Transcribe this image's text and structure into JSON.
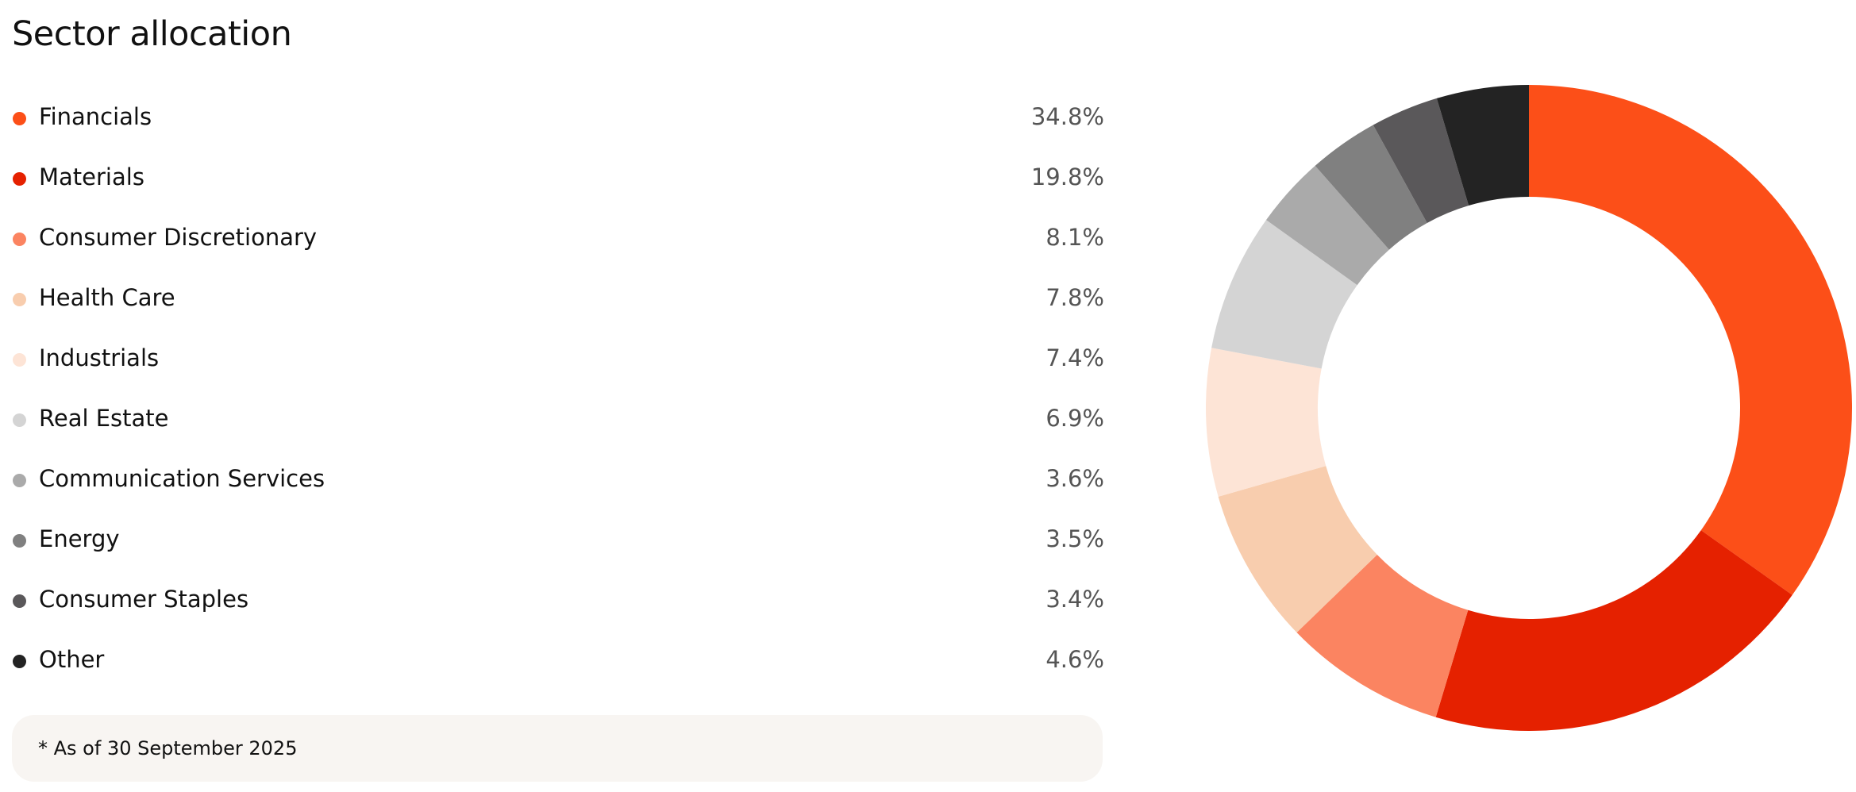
{
  "chart_data": {
    "type": "pie",
    "title": "Sector allocation",
    "donut": true,
    "categories": [
      "Financials",
      "Materials",
      "Consumer Discretionary",
      "Health Care",
      "Industrials",
      "Real Estate",
      "Communication Services",
      "Energy",
      "Consumer Staples",
      "Other"
    ],
    "values": [
      34.8,
      19.8,
      8.1,
      7.8,
      7.4,
      6.9,
      3.6,
      3.5,
      3.4,
      4.6
    ],
    "value_labels": [
      "34.8%",
      "19.8%",
      "8.1%",
      "7.8%",
      "7.4%",
      "6.9%",
      "3.6%",
      "3.5%",
      "3.4%",
      "4.6%"
    ],
    "colors": [
      "#fc4f18",
      "#e52100",
      "#fb8461",
      "#f8cdae",
      "#fde4d6",
      "#d4d4d4",
      "#aaaaaa",
      "#808080",
      "#5a585a",
      "#232323"
    ],
    "unit": "%",
    "legend_position": "left",
    "footnote": "* As of 30 September 2025"
  }
}
